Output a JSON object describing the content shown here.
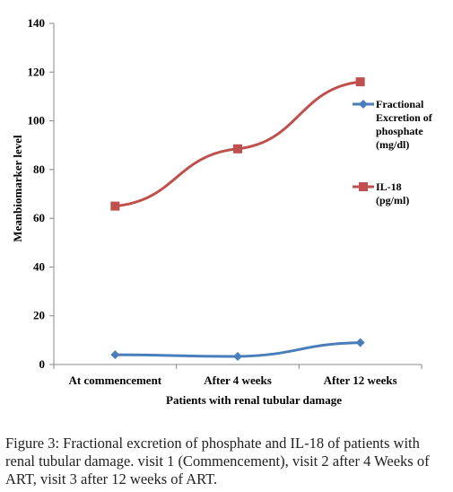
{
  "chart_data": {
    "type": "line",
    "categories": [
      "At commencement",
      "After 4 weeks",
      "After 12 weeks"
    ],
    "series": [
      {
        "name_lines": [
          "Fractional",
          "Excretion of",
          "phosphate",
          "(mg/dl)"
        ],
        "values": [
          4,
          3.3,
          9
        ],
        "color": "#4A7EBB",
        "marker": "diamond"
      },
      {
        "name_lines": [
          "IL-18",
          "(pg/ml)"
        ],
        "values": [
          65,
          88.5,
          116
        ],
        "color": "#C0504D",
        "marker": "square"
      }
    ],
    "ylabel": "Meanbiomarker level",
    "xlabel": "Patients with renal tubular damage",
    "ylim": [
      0,
      140
    ],
    "yticks": [
      0,
      20,
      40,
      60,
      80,
      100,
      120,
      140
    ],
    "grid": false,
    "legend": "right"
  },
  "caption": {
    "label": "Figure 3:",
    "text": "Fractional excretion of phosphate and IL-18 of patients with renal tubular damage. visit 1 (Commencement), visit 2 after 4 Weeks of ART, visit 3 after 12 weeks of ART."
  }
}
